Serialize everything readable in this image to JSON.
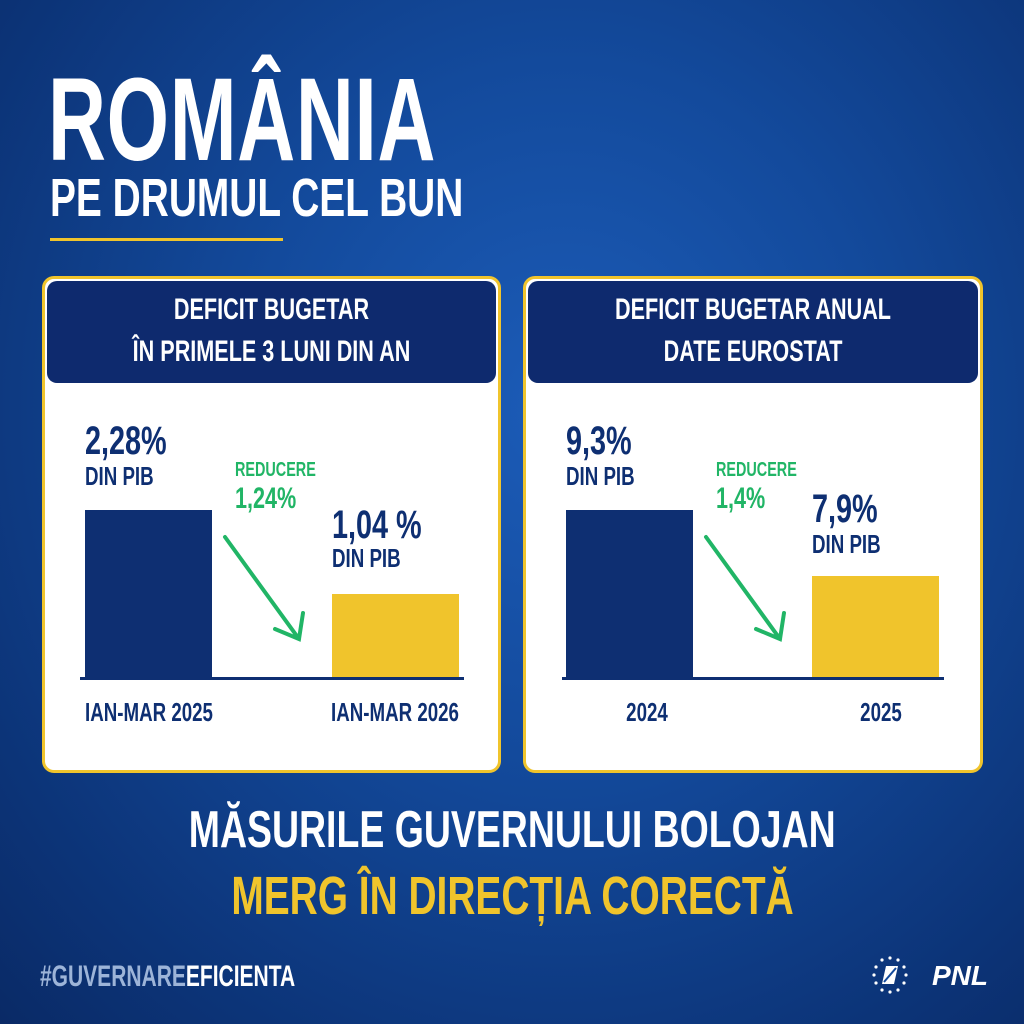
{
  "header": {
    "title": "ROMÂNIA",
    "subtitle": "PE DRUMUL CEL BUN"
  },
  "chart_data": [
    {
      "type": "bar",
      "title": "DEFICIT BUGETAR",
      "subtitle": "ÎN PRIMELE 3 LUNI DIN AN",
      "categories": [
        "IAN-MAR 2025",
        "IAN-MAR 2026"
      ],
      "values": [
        2.28,
        1.04
      ],
      "value_labels": [
        "2,28%",
        "1,04 %"
      ],
      "unit_label": "DIN PIB",
      "annotation": {
        "label": "REDUCERE",
        "value": "1,24%"
      },
      "colors": [
        "#0e2f72",
        "#f0c42c"
      ]
    },
    {
      "type": "bar",
      "title": "DEFICIT BUGETAR ANUAL",
      "subtitle": "DATE EUROSTAT",
      "categories": [
        "2024",
        "2025"
      ],
      "values": [
        9.3,
        7.9
      ],
      "value_labels": [
        "9,3%",
        "7,9%"
      ],
      "unit_label": "DIN PIB",
      "annotation": {
        "label": "REDUCERE",
        "value": "1,4%"
      },
      "colors": [
        "#0e2f72",
        "#f0c42c"
      ]
    }
  ],
  "footer": {
    "line1": "MĂSURILE GUVERNULUI BOLOJAN",
    "line2": "MERG ÎN DIRECȚIA CORECTĂ",
    "hashtag_a": "#GUVERNARE",
    "hashtag_b": "EFICIENTA",
    "logo_text": "PNL"
  }
}
